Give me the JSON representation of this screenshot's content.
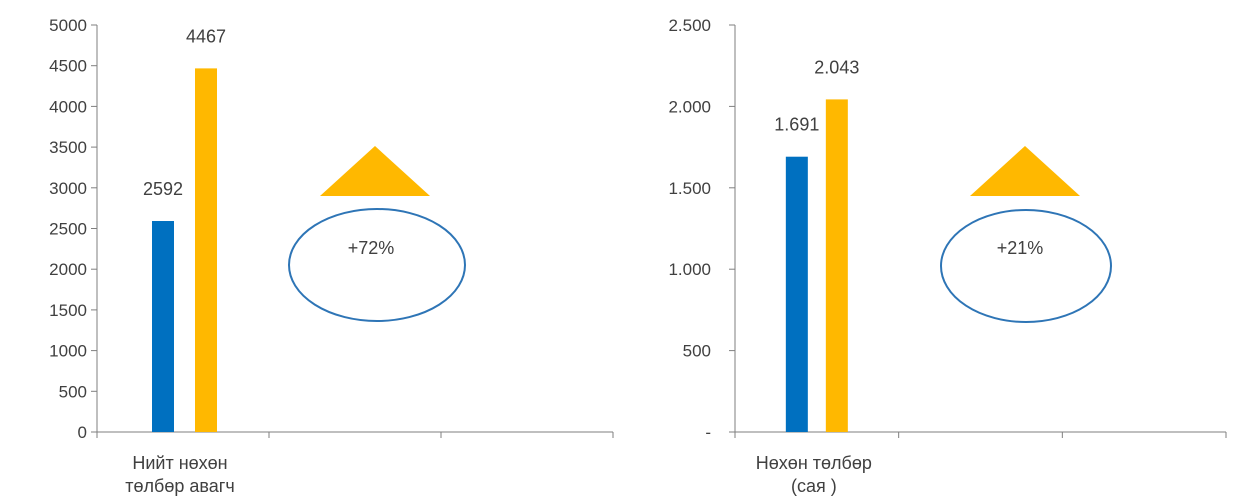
{
  "colors": {
    "series_a": "#0070C0",
    "series_b": "#FFB800",
    "axis": "#7f7f7f",
    "text": "#404040",
    "oval": "#2E75B6"
  },
  "chart_data": [
    {
      "type": "bar",
      "categories": [
        "Нийт нөхөн төлбөр авагч"
      ],
      "category_label_lines": [
        "Нийт нөхөн",
        "төлбөр авагч"
      ],
      "series": [
        {
          "values": [
            2592
          ]
        },
        {
          "values": [
            4467
          ]
        }
      ],
      "data_labels": [
        "2592",
        "4467"
      ],
      "ylim": [
        0,
        5000
      ],
      "yticks": [
        0,
        500,
        1000,
        1500,
        2000,
        2500,
        3000,
        3500,
        4000,
        4500,
        5000
      ],
      "ytick_labels": [
        "0",
        "500",
        "1000",
        "1500",
        "2000",
        "2500",
        "3000",
        "3500",
        "4000",
        "4500",
        "5000"
      ],
      "x_slots": 3,
      "grid": false,
      "annotation": {
        "text": "+72%",
        "icon": "up-triangle-icon",
        "shape": "oval"
      }
    },
    {
      "type": "bar",
      "categories": [
        "Нөхөн төлбөр (сая )"
      ],
      "category_label_lines": [
        "Нөхөн төлбөр",
        "(сая    )"
      ],
      "series": [
        {
          "values": [
            1691
          ]
        },
        {
          "values": [
            2043
          ]
        }
      ],
      "data_labels": [
        "1.691",
        "2.043"
      ],
      "ylim": [
        0,
        2500
      ],
      "yticks": [
        0,
        500,
        1000,
        1500,
        2000,
        2500
      ],
      "ytick_labels": [
        "-",
        "500",
        "1.000",
        "1.500",
        "2.000",
        "2.500"
      ],
      "x_slots": 3,
      "grid": false,
      "annotation": {
        "text": "+21%",
        "icon": "up-triangle-icon",
        "shape": "oval"
      }
    }
  ]
}
